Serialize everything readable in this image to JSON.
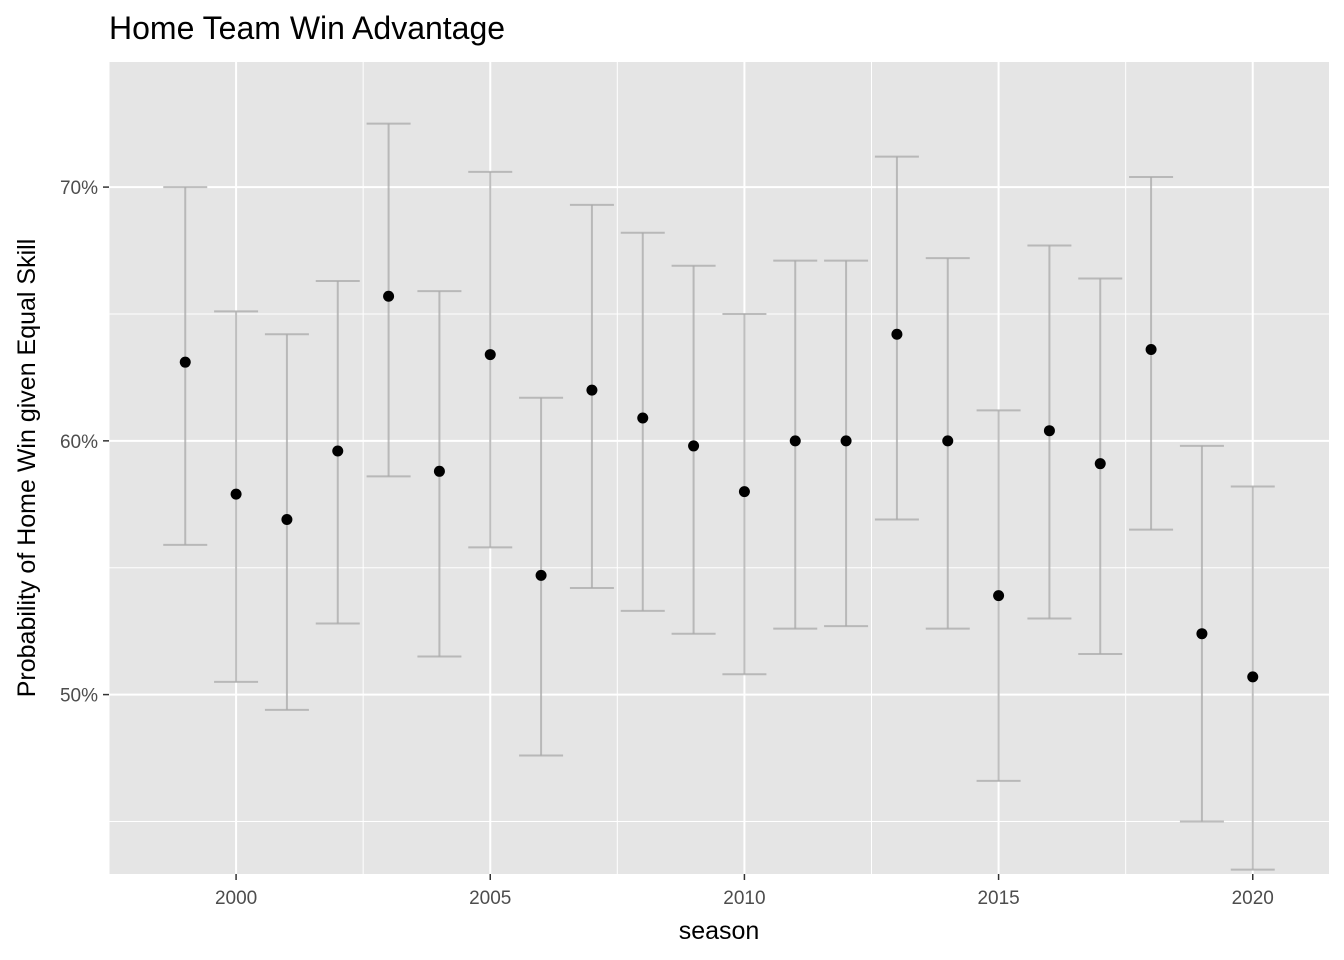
{
  "chart_data": {
    "type": "scatter",
    "title": "Home Team Win Advantage",
    "xlabel": "season",
    "ylabel": "Probability of Home Win given Equal Skill",
    "xlim": [
      1997.5,
      2021.5
    ],
    "ylim": [
      0.4293,
      0.7493
    ],
    "x_ticks": [
      2000,
      2005,
      2010,
      2015,
      2020
    ],
    "x_tick_labels": [
      "2000",
      "2005",
      "2010",
      "2015",
      "2020"
    ],
    "y_ticks": [
      0.5,
      0.6,
      0.7
    ],
    "y_tick_labels": [
      "50%",
      "60%",
      "70%"
    ],
    "grid": true,
    "series": [
      {
        "x": [
          1999,
          2000,
          2001,
          2002,
          2003,
          2004,
          2005,
          2006,
          2007,
          2008,
          2009,
          2010,
          2011,
          2012,
          2013,
          2014,
          2015,
          2016,
          2017,
          2018,
          2019,
          2020
        ],
        "y": [
          0.631,
          0.579,
          0.569,
          0.596,
          0.657,
          0.588,
          0.634,
          0.547,
          0.62,
          0.609,
          0.598,
          0.58,
          0.6,
          0.6,
          0.642,
          0.6,
          0.539,
          0.604,
          0.591,
          0.636,
          0.524,
          0.507
        ],
        "ymin": [
          0.559,
          0.505,
          0.494,
          0.528,
          0.586,
          0.515,
          0.558,
          0.476,
          0.542,
          0.533,
          0.524,
          0.508,
          0.526,
          0.527,
          0.569,
          0.526,
          0.466,
          0.53,
          0.516,
          0.565,
          0.45,
          0.431
        ],
        "ymax": [
          0.7,
          0.651,
          0.642,
          0.663,
          0.725,
          0.659,
          0.706,
          0.617,
          0.693,
          0.682,
          0.669,
          0.65,
          0.671,
          0.671,
          0.712,
          0.672,
          0.612,
          0.677,
          0.664,
          0.704,
          0.598,
          0.582
        ]
      }
    ]
  }
}
